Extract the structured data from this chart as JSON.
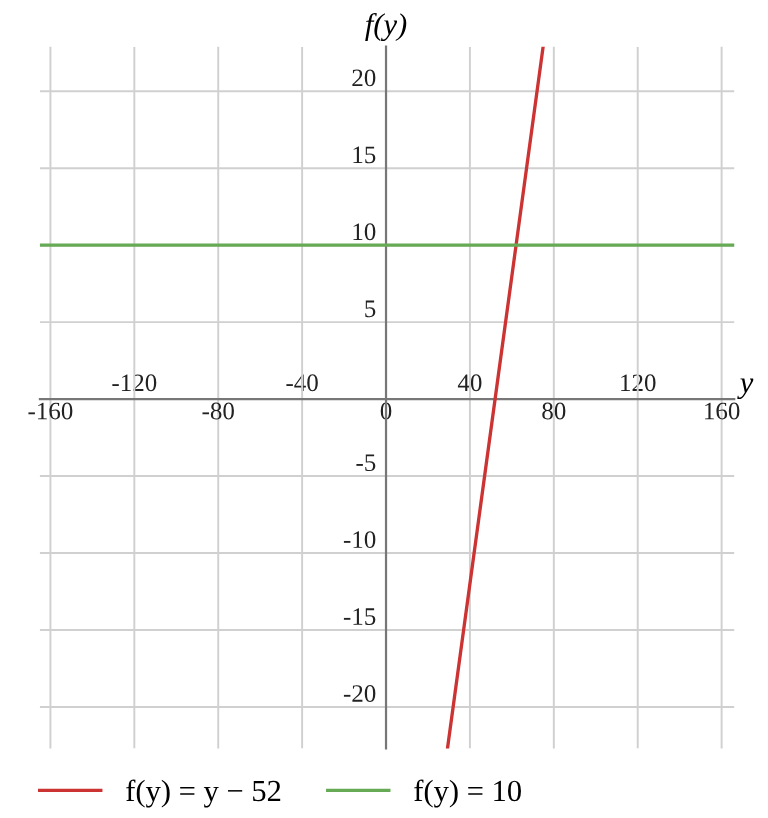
{
  "chart_data": {
    "type": "line",
    "xlabel": "y",
    "ylabel": "f(y)",
    "series": [
      {
        "name": "f(y) = y − 52",
        "color": "#cc3333",
        "x": [
          29.3,
          74.9
        ],
        "values": [
          -22.7,
          22.9
        ]
      },
      {
        "name": "f(y) = 10",
        "color": "#66aa55",
        "x": [
          -165,
          166
        ],
        "values": [
          10,
          10
        ]
      }
    ],
    "xlim": [
      -165,
      166
    ],
    "ylim": [
      -22.7,
      22.9
    ],
    "xticks": [
      -160,
      -80,
      0,
      80,
      160
    ],
    "x2lim": [
      -165,
      166
    ],
    "x2ticks": [
      -120,
      -40,
      40,
      120
    ],
    "yticks": [
      -20,
      -15,
      -10,
      -5,
      5,
      10,
      15,
      20
    ],
    "grid": true,
    "legend": "bottom",
    "marker": "none",
    "line_style": "solid"
  }
}
